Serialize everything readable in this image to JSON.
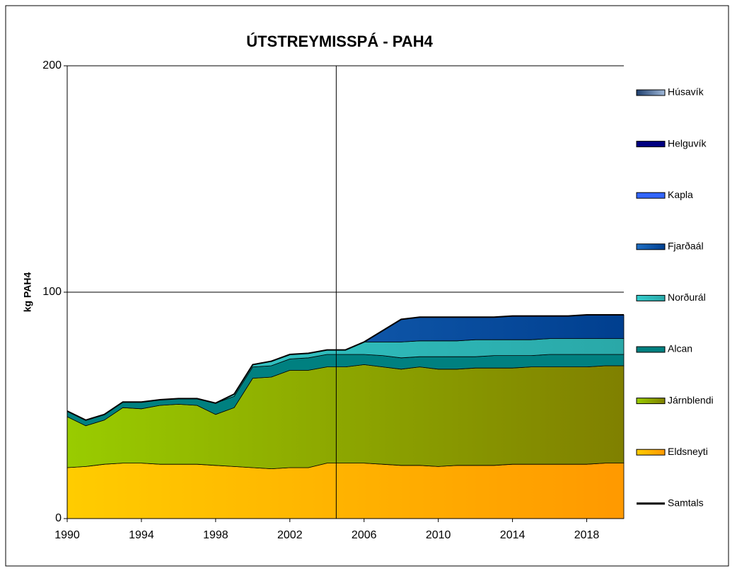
{
  "chart_data": {
    "type": "stacked_area",
    "title": "ÚTSTREYMISSPÁ - PAH4",
    "y_label": "kg PAH4",
    "x": [
      1990,
      1991,
      1992,
      1993,
      1994,
      1995,
      1996,
      1997,
      1998,
      1999,
      2000,
      2001,
      2002,
      2003,
      2004,
      2005,
      2006,
      2007,
      2008,
      2009,
      2010,
      2011,
      2012,
      2013,
      2014,
      2015,
      2016,
      2017,
      2018,
      2019,
      2020
    ],
    "xlim": [
      1990,
      2020
    ],
    "xticks": [
      1990,
      1994,
      1998,
      2002,
      2006,
      2010,
      2014,
      2018
    ],
    "ylim": [
      0,
      200
    ],
    "yticks": [
      0,
      100,
      200
    ],
    "grid": true,
    "vline": 2004.5,
    "legend": "right",
    "series": [
      {
        "name": "Eldsneyti",
        "color": "#ffcc00",
        "color2": "#ff9900",
        "values": [
          22.5,
          23,
          24,
          24.5,
          24.5,
          24,
          24,
          24,
          23.5,
          23,
          22.5,
          22,
          22.5,
          22.5,
          24.5,
          24.5,
          24.5,
          24,
          23.5,
          23.5,
          23,
          23.5,
          23.5,
          23.5,
          24,
          24,
          24,
          24,
          24,
          24.5,
          24.5
        ]
      },
      {
        "name": "Járnblendi",
        "color": "#99cc00",
        "color2": "#808000",
        "values": [
          22.5,
          18,
          19.5,
          24.5,
          24,
          26,
          26.5,
          26,
          22.5,
          26,
          39.5,
          40.5,
          43,
          43,
          42.5,
          42.5,
          43.5,
          43,
          42.5,
          43.5,
          43,
          42.5,
          43,
          43,
          42.5,
          43,
          43,
          43,
          43,
          43,
          43
        ]
      },
      {
        "name": "Alcan",
        "color": "#008080",
        "color2": "#008080",
        "values": [
          2.5,
          2.5,
          2.5,
          2.5,
          3,
          2.5,
          2.5,
          3,
          5,
          5,
          5,
          5,
          5,
          5.5,
          5.5,
          5.5,
          4.5,
          5,
          5,
          4.5,
          5.5,
          5.5,
          5,
          5.5,
          5.5,
          5,
          5.5,
          5.5,
          5.5,
          5,
          5
        ]
      },
      {
        "name": "Norðurál",
        "color": "#33cccc",
        "color2": "#2aa8a8",
        "values": [
          0,
          0,
          0,
          0,
          0,
          0,
          0,
          0,
          0,
          1,
          1,
          2,
          2,
          2,
          2,
          2,
          5.5,
          6,
          7,
          7,
          7,
          7,
          7.5,
          7,
          7,
          7,
          7,
          7,
          7,
          7,
          7
        ]
      },
      {
        "name": "Fjarðaál",
        "color": "#1f6fc4",
        "color2": "#003f8f",
        "values": [
          0,
          0,
          0,
          0,
          0,
          0,
          0,
          0,
          0,
          0,
          0,
          0,
          0,
          0,
          0,
          0,
          0,
          5,
          10,
          10.5,
          10.5,
          10.5,
          10,
          10,
          10.5,
          10.5,
          10,
          10,
          10.5,
          10.5,
          10.5
        ]
      },
      {
        "name": "Kapla",
        "color": "#3366ff",
        "color2": "#3366ff",
        "values": [
          0,
          0,
          0,
          0,
          0,
          0,
          0,
          0,
          0,
          0,
          0,
          0,
          0,
          0,
          0,
          0,
          0,
          0,
          0,
          0,
          0,
          0,
          0,
          0,
          0,
          0,
          0,
          0,
          0,
          0,
          0
        ]
      },
      {
        "name": "Helguvík",
        "color": "#000080",
        "color2": "#000080",
        "values": [
          0,
          0,
          0,
          0,
          0,
          0,
          0,
          0,
          0,
          0,
          0,
          0,
          0,
          0,
          0,
          0,
          0,
          0,
          0,
          0,
          0,
          0,
          0,
          0,
          0,
          0,
          0,
          0,
          0,
          0,
          0
        ]
      },
      {
        "name": "Húsavík",
        "color": "#1f3f6f",
        "color2": "#9fb8d8",
        "values": [
          0,
          0,
          0,
          0,
          0,
          0,
          0,
          0,
          0,
          0,
          0,
          0,
          0,
          0,
          0,
          0,
          0,
          0,
          0,
          0,
          0,
          0,
          0,
          0,
          0,
          0,
          0,
          0,
          0,
          0,
          0
        ]
      },
      {
        "name": "Samtals",
        "kind": "line",
        "color": "#000000",
        "values": [
          47.5,
          43.5,
          46,
          51.5,
          51.5,
          52.5,
          53,
          53,
          51,
          55,
          68,
          69.5,
          72.5,
          73,
          74.5,
          74.5,
          78,
          83,
          88,
          89,
          89,
          89,
          89,
          89,
          89.5,
          89.5,
          89.5,
          89.5,
          90,
          90,
          90
        ]
      }
    ]
  }
}
